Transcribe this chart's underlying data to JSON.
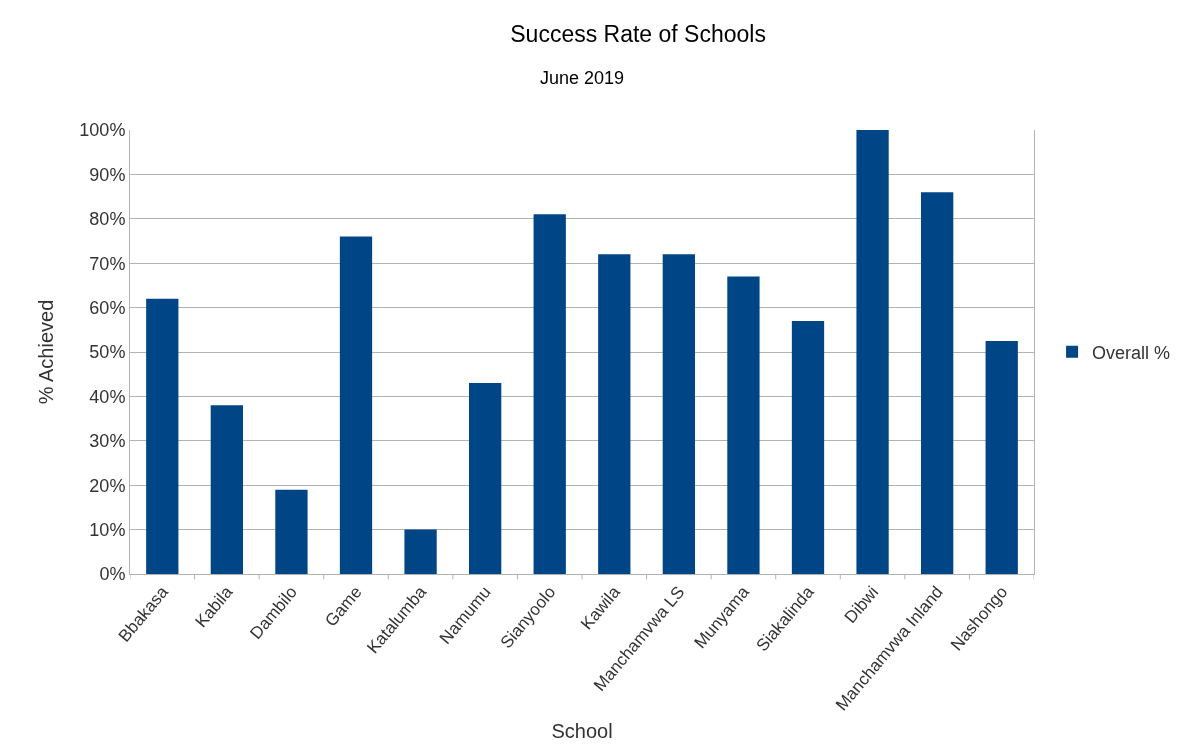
{
  "chart_data": {
    "type": "bar",
    "title": "Success Rate of Schools",
    "subtitle": "June 2019",
    "xlabel": "School",
    "ylabel": "% Achieved",
    "categories": [
      "Bbakasa",
      "Kabila",
      "Dambilo",
      "Game",
      "Katalumba",
      "Namumu",
      "Sianyoolo",
      "Kawila",
      "Manchamvwa LS",
      "Munyama",
      "Siakalinda",
      "Dibwi",
      "Manchamvwa Inland",
      "Nashongo"
    ],
    "series": [
      {
        "name": "Overall %",
        "color": "#004586",
        "values": [
          62,
          38,
          19,
          76,
          10,
          43,
          81,
          72,
          72,
          67,
          57,
          100,
          86,
          52.5
        ]
      }
    ],
    "ylim": [
      0,
      100
    ],
    "yticks": [
      {
        "value": 0,
        "label": "0%"
      },
      {
        "value": 10,
        "label": "10%"
      },
      {
        "value": 20,
        "label": "20%"
      },
      {
        "value": 30,
        "label": "30%"
      },
      {
        "value": 40,
        "label": "40%"
      },
      {
        "value": 50,
        "label": "50%"
      },
      {
        "value": 60,
        "label": "60%"
      },
      {
        "value": 70,
        "label": "70%"
      },
      {
        "value": 80,
        "label": "80%"
      },
      {
        "value": 90,
        "label": "90%"
      },
      {
        "value": 100,
        "label": "100%"
      }
    ],
    "grid": "y",
    "legend": "right"
  }
}
